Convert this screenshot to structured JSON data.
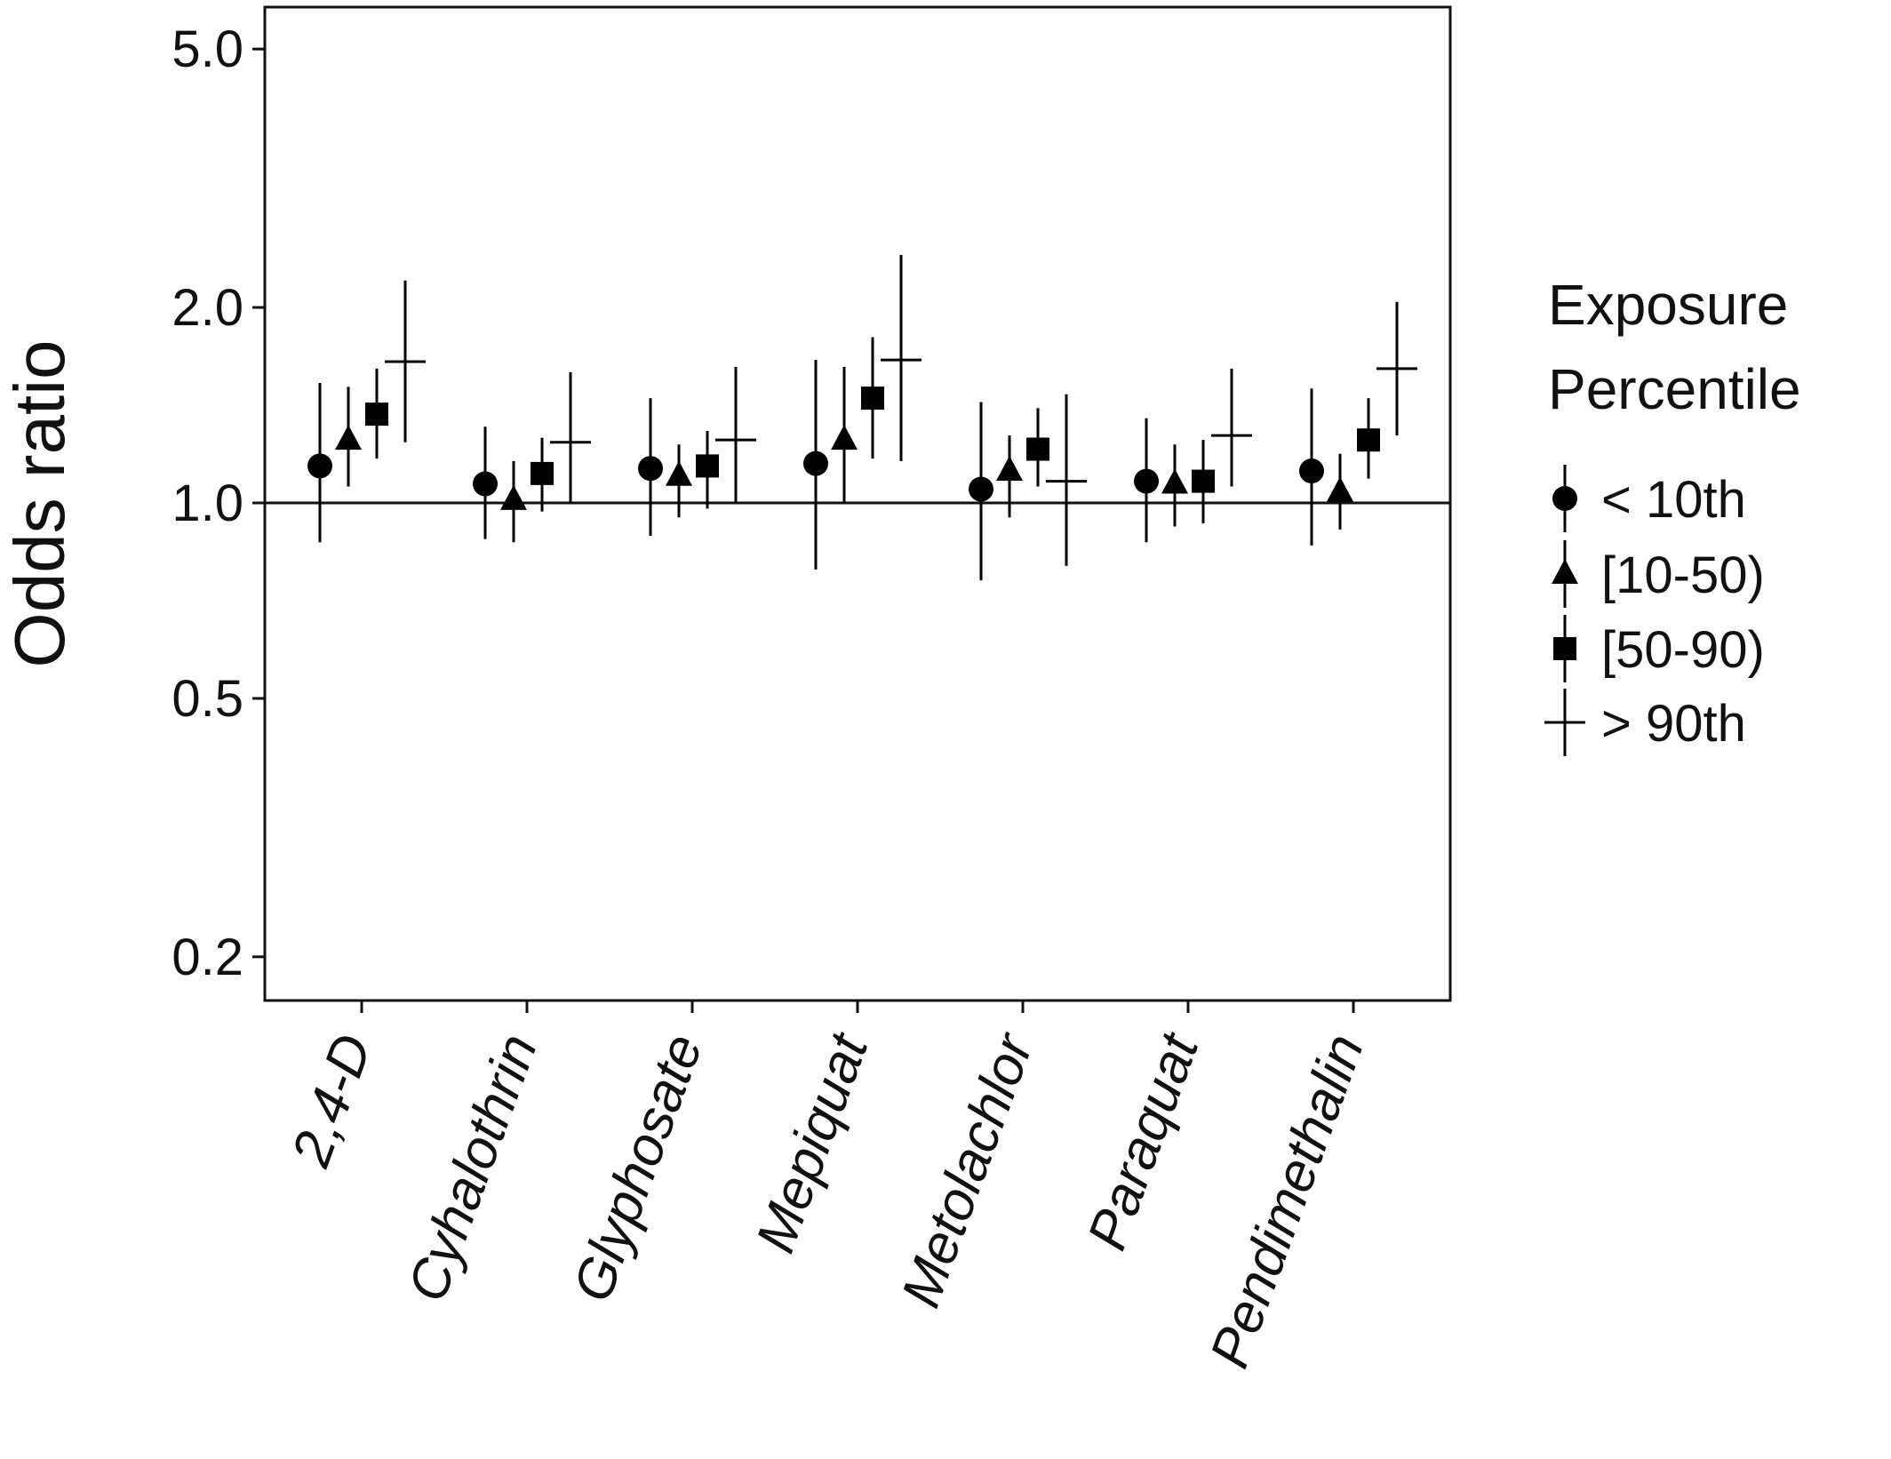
{
  "chart_data": {
    "type": "scatter",
    "subtype": "point-range (odds ratios with confidence intervals)",
    "categories": [
      "2,4-D",
      "Cyhalothrin",
      "Glyphosate",
      "Mepiquat",
      "Metolachlor",
      "Paraquat",
      "Pendimethalin"
    ],
    "ylabel": "Odds ratio",
    "y_scale": "log",
    "ylim": [
      0.18,
      5.8
    ],
    "yticks": [
      0.2,
      0.5,
      1.0,
      2.0,
      5.0
    ],
    "ytick_labels": [
      "0.2",
      "0.5",
      "1.0",
      "2.0",
      "5.0"
    ],
    "reference_line": 1.0,
    "grid": false,
    "legend": {
      "title_line1": "Exposure",
      "title_line2": "Percentile",
      "position": "right"
    },
    "series": [
      {
        "name": "< 10th",
        "marker": "circle",
        "points": [
          {
            "or": 1.14,
            "lo": 0.87,
            "hi": 1.53
          },
          {
            "or": 1.07,
            "lo": 0.88,
            "hi": 1.31
          },
          {
            "or": 1.13,
            "lo": 0.89,
            "hi": 1.45
          },
          {
            "or": 1.15,
            "lo": 0.79,
            "hi": 1.66
          },
          {
            "or": 1.05,
            "lo": 0.76,
            "hi": 1.43
          },
          {
            "or": 1.08,
            "lo": 0.87,
            "hi": 1.35
          },
          {
            "or": 1.12,
            "lo": 0.86,
            "hi": 1.5
          }
        ]
      },
      {
        "name": "[10-50)",
        "marker": "triangle",
        "points": [
          {
            "or": 1.25,
            "lo": 1.06,
            "hi": 1.51
          },
          {
            "or": 1.01,
            "lo": 0.87,
            "hi": 1.16
          },
          {
            "or": 1.1,
            "lo": 0.95,
            "hi": 1.23
          },
          {
            "or": 1.25,
            "lo": 1.0,
            "hi": 1.62
          },
          {
            "or": 1.12,
            "lo": 0.95,
            "hi": 1.27
          },
          {
            "or": 1.07,
            "lo": 0.92,
            "hi": 1.23
          },
          {
            "or": 1.04,
            "lo": 0.91,
            "hi": 1.19
          }
        ]
      },
      {
        "name": "[50-90)",
        "marker": "square",
        "points": [
          {
            "or": 1.37,
            "lo": 1.17,
            "hi": 1.61
          },
          {
            "or": 1.11,
            "lo": 0.97,
            "hi": 1.26
          },
          {
            "or": 1.14,
            "lo": 0.98,
            "hi": 1.29
          },
          {
            "or": 1.45,
            "lo": 1.17,
            "hi": 1.8
          },
          {
            "or": 1.21,
            "lo": 1.06,
            "hi": 1.4
          },
          {
            "or": 1.08,
            "lo": 0.93,
            "hi": 1.25
          },
          {
            "or": 1.25,
            "lo": 1.09,
            "hi": 1.45
          }
        ]
      },
      {
        "name": "> 90th",
        "marker": "cross",
        "points": [
          {
            "or": 1.65,
            "lo": 1.24,
            "hi": 2.2
          },
          {
            "or": 1.24,
            "lo": 1.0,
            "hi": 1.59
          },
          {
            "or": 1.25,
            "lo": 1.0,
            "hi": 1.62
          },
          {
            "or": 1.66,
            "lo": 1.16,
            "hi": 2.41
          },
          {
            "or": 1.08,
            "lo": 0.8,
            "hi": 1.47
          },
          {
            "or": 1.27,
            "lo": 1.06,
            "hi": 1.61
          },
          {
            "or": 1.61,
            "lo": 1.27,
            "hi": 2.04
          }
        ]
      }
    ]
  }
}
